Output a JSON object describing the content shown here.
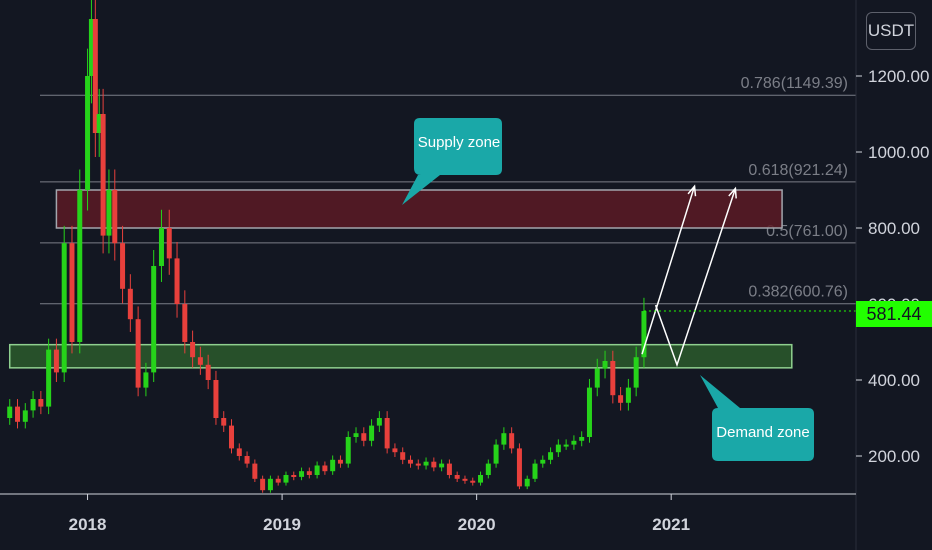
{
  "currency_button": {
    "label": "USDT"
  },
  "last_price": {
    "label": "581.44",
    "value": 581.44,
    "color": "#22ff00"
  },
  "annotations": {
    "supply": "Supply zone",
    "demand": "Demand zone"
  },
  "colors": {
    "background": "#131722",
    "up": "#26d31a",
    "down": "#e8403c",
    "supply_fill": "#5c1a24",
    "demand_fill": "#2c5a2c",
    "callout": "#1aa8a8"
  },
  "chart_data": {
    "type": "candlestick",
    "y_axis": {
      "min": 100,
      "max": 1400,
      "ticks": [
        200,
        400,
        600,
        800,
        1000,
        1200
      ],
      "tick_labels": [
        "200.00",
        "400.00",
        "600.00",
        "800.00",
        "1000.00",
        "1200.00"
      ]
    },
    "x_axis": {
      "range": [
        2017.55,
        2021.95
      ],
      "ticks": [
        2018,
        2019,
        2020,
        2021
      ],
      "tick_labels": [
        "2018",
        "2019",
        "2020",
        "2021"
      ]
    },
    "fib_levels": [
      {
        "label": "0.786(1149.39)",
        "value": 1149.39
      },
      {
        "label": "0.618(921.24)",
        "value": 921.24
      },
      {
        "label": "0.5(761.00)",
        "value": 761.0
      },
      {
        "label": "0.382(600.76)",
        "value": 600.76
      }
    ],
    "zones": [
      {
        "name": "Supply zone",
        "from": 2017.84,
        "to": 2021.57,
        "low": 800,
        "high": 900
      },
      {
        "name": "Demand zone",
        "from": 2017.6,
        "to": 2021.62,
        "low": 432,
        "high": 493
      }
    ],
    "projection_paths": [
      [
        [
          2020.85,
          468
        ],
        [
          2021.12,
          910
        ]
      ],
      [
        [
          2020.92,
          597
        ],
        [
          2021.03,
          440
        ],
        [
          2021.33,
          904
        ]
      ]
    ],
    "candles": [
      [
        2017.6,
        300,
        330
      ],
      [
        2017.64,
        330,
        290
      ],
      [
        2017.68,
        290,
        320
      ],
      [
        2017.72,
        320,
        350
      ],
      [
        2017.76,
        350,
        330
      ],
      [
        2017.8,
        330,
        480
      ],
      [
        2017.84,
        480,
        420
      ],
      [
        2017.88,
        420,
        760
      ],
      [
        2017.92,
        760,
        500
      ],
      [
        2017.96,
        500,
        900
      ],
      [
        2018.0,
        900,
        1200
      ],
      [
        2018.02,
        1200,
        1350
      ],
      [
        2018.04,
        1350,
        1050
      ],
      [
        2018.06,
        1050,
        1100
      ],
      [
        2018.08,
        1100,
        780
      ],
      [
        2018.11,
        780,
        900
      ],
      [
        2018.14,
        900,
        760
      ],
      [
        2018.18,
        760,
        640
      ],
      [
        2018.22,
        640,
        560
      ],
      [
        2018.26,
        560,
        380
      ],
      [
        2018.3,
        380,
        420
      ],
      [
        2018.34,
        420,
        700
      ],
      [
        2018.38,
        700,
        800
      ],
      [
        2018.42,
        800,
        720
      ],
      [
        2018.46,
        720,
        600
      ],
      [
        2018.5,
        600,
        500
      ],
      [
        2018.54,
        500,
        460
      ],
      [
        2018.58,
        460,
        440
      ],
      [
        2018.62,
        440,
        400
      ],
      [
        2018.66,
        400,
        300
      ],
      [
        2018.7,
        300,
        280
      ],
      [
        2018.74,
        280,
        220
      ],
      [
        2018.78,
        220,
        200
      ],
      [
        2018.82,
        200,
        180
      ],
      [
        2018.86,
        180,
        140
      ],
      [
        2018.9,
        140,
        110
      ],
      [
        2018.94,
        110,
        140
      ],
      [
        2018.98,
        140,
        130
      ],
      [
        2019.02,
        130,
        150
      ],
      [
        2019.06,
        150,
        145
      ],
      [
        2019.1,
        145,
        160
      ],
      [
        2019.14,
        160,
        150
      ],
      [
        2019.18,
        150,
        175
      ],
      [
        2019.22,
        175,
        160
      ],
      [
        2019.26,
        160,
        190
      ],
      [
        2019.3,
        190,
        180
      ],
      [
        2019.34,
        180,
        250
      ],
      [
        2019.38,
        250,
        260
      ],
      [
        2019.42,
        260,
        240
      ],
      [
        2019.46,
        240,
        280
      ],
      [
        2019.5,
        280,
        300
      ],
      [
        2019.54,
        300,
        220
      ],
      [
        2019.58,
        220,
        210
      ],
      [
        2019.62,
        210,
        190
      ],
      [
        2019.66,
        190,
        180
      ],
      [
        2019.7,
        180,
        175
      ],
      [
        2019.74,
        175,
        185
      ],
      [
        2019.78,
        185,
        170
      ],
      [
        2019.82,
        170,
        180
      ],
      [
        2019.86,
        180,
        150
      ],
      [
        2019.9,
        150,
        140
      ],
      [
        2019.94,
        140,
        135
      ],
      [
        2019.98,
        135,
        130
      ],
      [
        2020.02,
        130,
        150
      ],
      [
        2020.06,
        150,
        180
      ],
      [
        2020.1,
        180,
        230
      ],
      [
        2020.14,
        230,
        260
      ],
      [
        2020.18,
        260,
        220
      ],
      [
        2020.22,
        220,
        120
      ],
      [
        2020.26,
        120,
        140
      ],
      [
        2020.3,
        140,
        180
      ],
      [
        2020.34,
        180,
        190
      ],
      [
        2020.38,
        190,
        210
      ],
      [
        2020.42,
        210,
        230
      ],
      [
        2020.46,
        230,
        230
      ],
      [
        2020.5,
        230,
        240
      ],
      [
        2020.54,
        240,
        250
      ],
      [
        2020.58,
        250,
        380
      ],
      [
        2020.62,
        380,
        430
      ],
      [
        2020.66,
        430,
        450
      ],
      [
        2020.7,
        450,
        360
      ],
      [
        2020.74,
        360,
        340
      ],
      [
        2020.78,
        340,
        380
      ],
      [
        2020.82,
        380,
        460
      ],
      [
        2020.86,
        460,
        581.44
      ]
    ]
  }
}
